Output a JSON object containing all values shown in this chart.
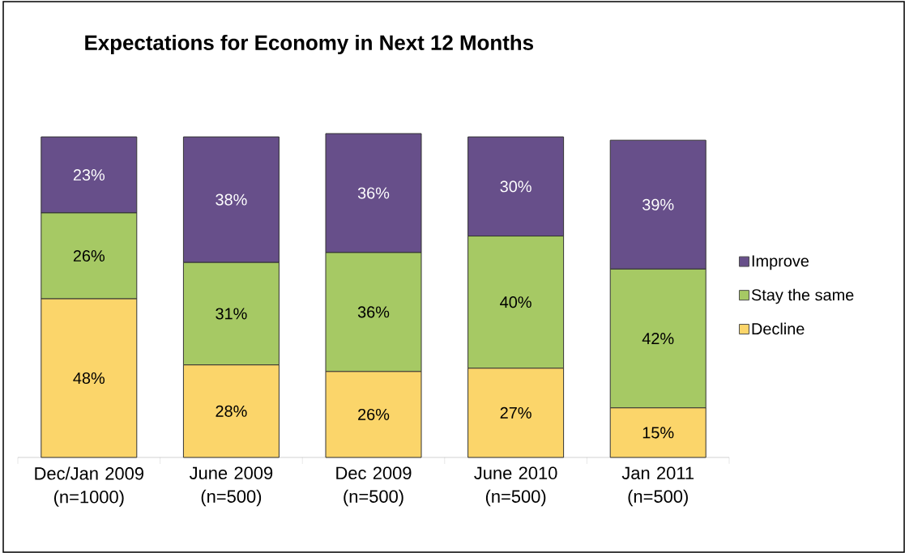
{
  "chart_data": {
    "type": "bar",
    "stacked": true,
    "title": "Expectations for Economy in Next 12 Months",
    "categories": [
      "Dec/Jan 2009 (n=1000)",
      "June 2009 (n=500)",
      "Dec 2009 (n=500)",
      "June 2010 (n=500)",
      "Jan 2011 (n=500)"
    ],
    "series": [
      {
        "name": "Decline",
        "color": "#fbd56a",
        "values": [
          48,
          28,
          26,
          27,
          15
        ],
        "value_labels": [
          "48%",
          "28%",
          "26%",
          "27%",
          "15%"
        ]
      },
      {
        "name": "Stay the same",
        "color": "#a6c964",
        "values": [
          26,
          31,
          36,
          40,
          42
        ],
        "value_labels": [
          "26%",
          "31%",
          "36%",
          "40%",
          "42%"
        ]
      },
      {
        "name": "Improve",
        "color": "#674f8a",
        "values": [
          23,
          38,
          36,
          30,
          39
        ],
        "value_labels": [
          "23%",
          "38%",
          "36%",
          "30%",
          "39%"
        ]
      }
    ],
    "legend": "right"
  }
}
